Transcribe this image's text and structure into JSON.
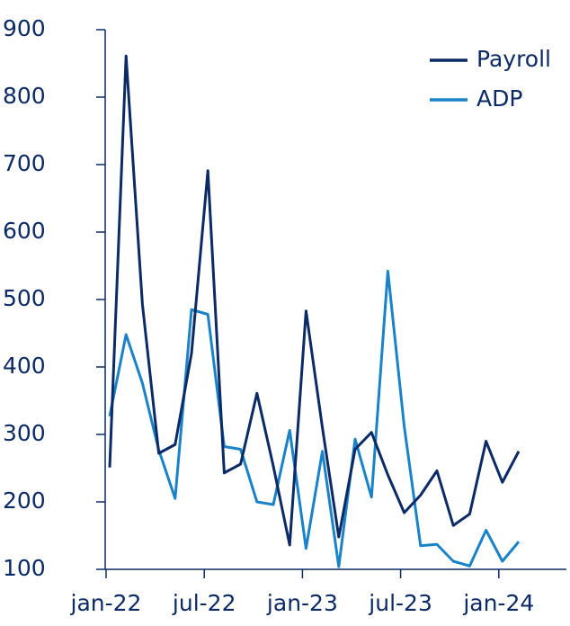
{
  "chart_data": {
    "type": "line",
    "categories": [
      "jan-22",
      null,
      null,
      null,
      null,
      null,
      "jul-22",
      null,
      null,
      null,
      null,
      null,
      "jan-23",
      null,
      null,
      null,
      null,
      null,
      "jul-23",
      null,
      null,
      null,
      null,
      null,
      "jan-24",
      null
    ],
    "series": [
      {
        "name": "Payroll",
        "color": "#0b2a66",
        "values": [
          251,
          861,
          493,
          272,
          285,
          420,
          691,
          243,
          256,
          361,
          253,
          136,
          483,
          310,
          148,
          278,
          303,
          240,
          184,
          210,
          246,
          165,
          182,
          290,
          229,
          275
        ]
      },
      {
        "name": "ADP",
        "color": "#1a82c8",
        "values": [
          327,
          448,
          376,
          277,
          205,
          485,
          478,
          282,
          278,
          200,
          196,
          306,
          131,
          275,
          104,
          293,
          207,
          542,
          312,
          135,
          137,
          112,
          105,
          158,
          112,
          141
        ]
      }
    ],
    "ylim": [
      100,
      900
    ],
    "yticks": [
      100,
      200,
      300,
      400,
      500,
      600,
      700,
      800,
      900
    ],
    "legend": "top-right",
    "grid": false
  }
}
